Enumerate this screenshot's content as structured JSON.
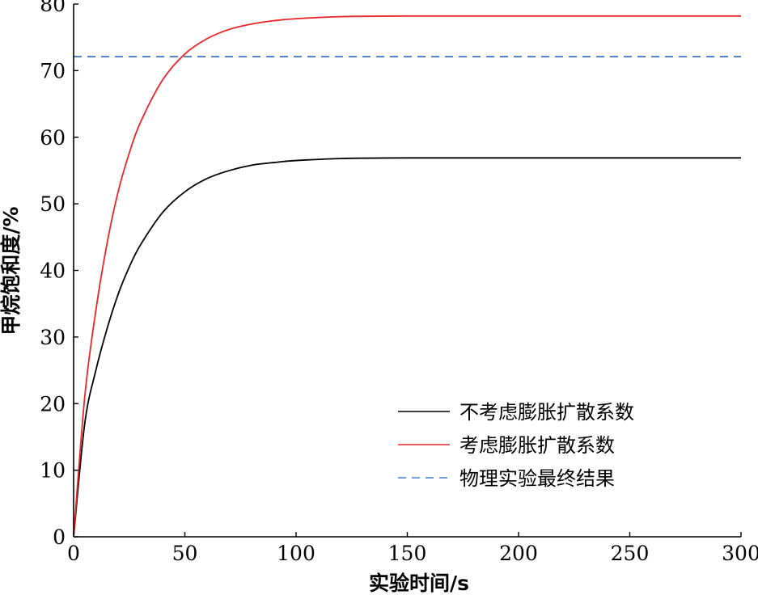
{
  "chart_data": {
    "type": "line",
    "xlabel": "实验时间/s",
    "ylabel": "甲烷饱和度/%",
    "xlim": [
      0,
      300
    ],
    "ylim": [
      0,
      80
    ],
    "xticks": [
      "0",
      "50",
      "100",
      "150",
      "200",
      "250",
      "300"
    ],
    "yticks": [
      "0",
      "10",
      "20",
      "30",
      "40",
      "50",
      "60",
      "70",
      "80"
    ],
    "legend_position": "lower-right",
    "grid": false,
    "series": [
      {
        "name": "不考虑膨胀扩散系数",
        "color": "#000000",
        "dash": "solid",
        "x": [
          0,
          5,
          10,
          15,
          20,
          25,
          30,
          40,
          50,
          60,
          70,
          80,
          90,
          100,
          120,
          150,
          200,
          250,
          300
        ],
        "y": [
          0,
          17.0,
          25.0,
          31.2,
          36.4,
          40.5,
          43.8,
          48.7,
          51.8,
          53.8,
          55.0,
          55.8,
          56.2,
          56.5,
          56.8,
          56.9,
          56.9,
          56.9,
          56.9
        ]
      },
      {
        "name": "考虑膨胀扩散系数",
        "color": "#e8262a",
        "dash": "solid",
        "x": [
          0,
          5,
          10,
          15,
          20,
          25,
          30,
          40,
          50,
          60,
          70,
          80,
          90,
          100,
          120,
          150,
          200,
          250,
          300
        ],
        "y": [
          0,
          21.0,
          34.0,
          44.0,
          51.8,
          57.6,
          62.2,
          68.6,
          72.5,
          74.8,
          76.2,
          77.0,
          77.5,
          77.8,
          78.1,
          78.2,
          78.2,
          78.2,
          78.2
        ]
      },
      {
        "name": "物理实验最终结果",
        "color": "#4a7fc8",
        "dash": "dashed",
        "x": [
          0,
          300
        ],
        "y": [
          72.1,
          72.1
        ]
      }
    ]
  }
}
